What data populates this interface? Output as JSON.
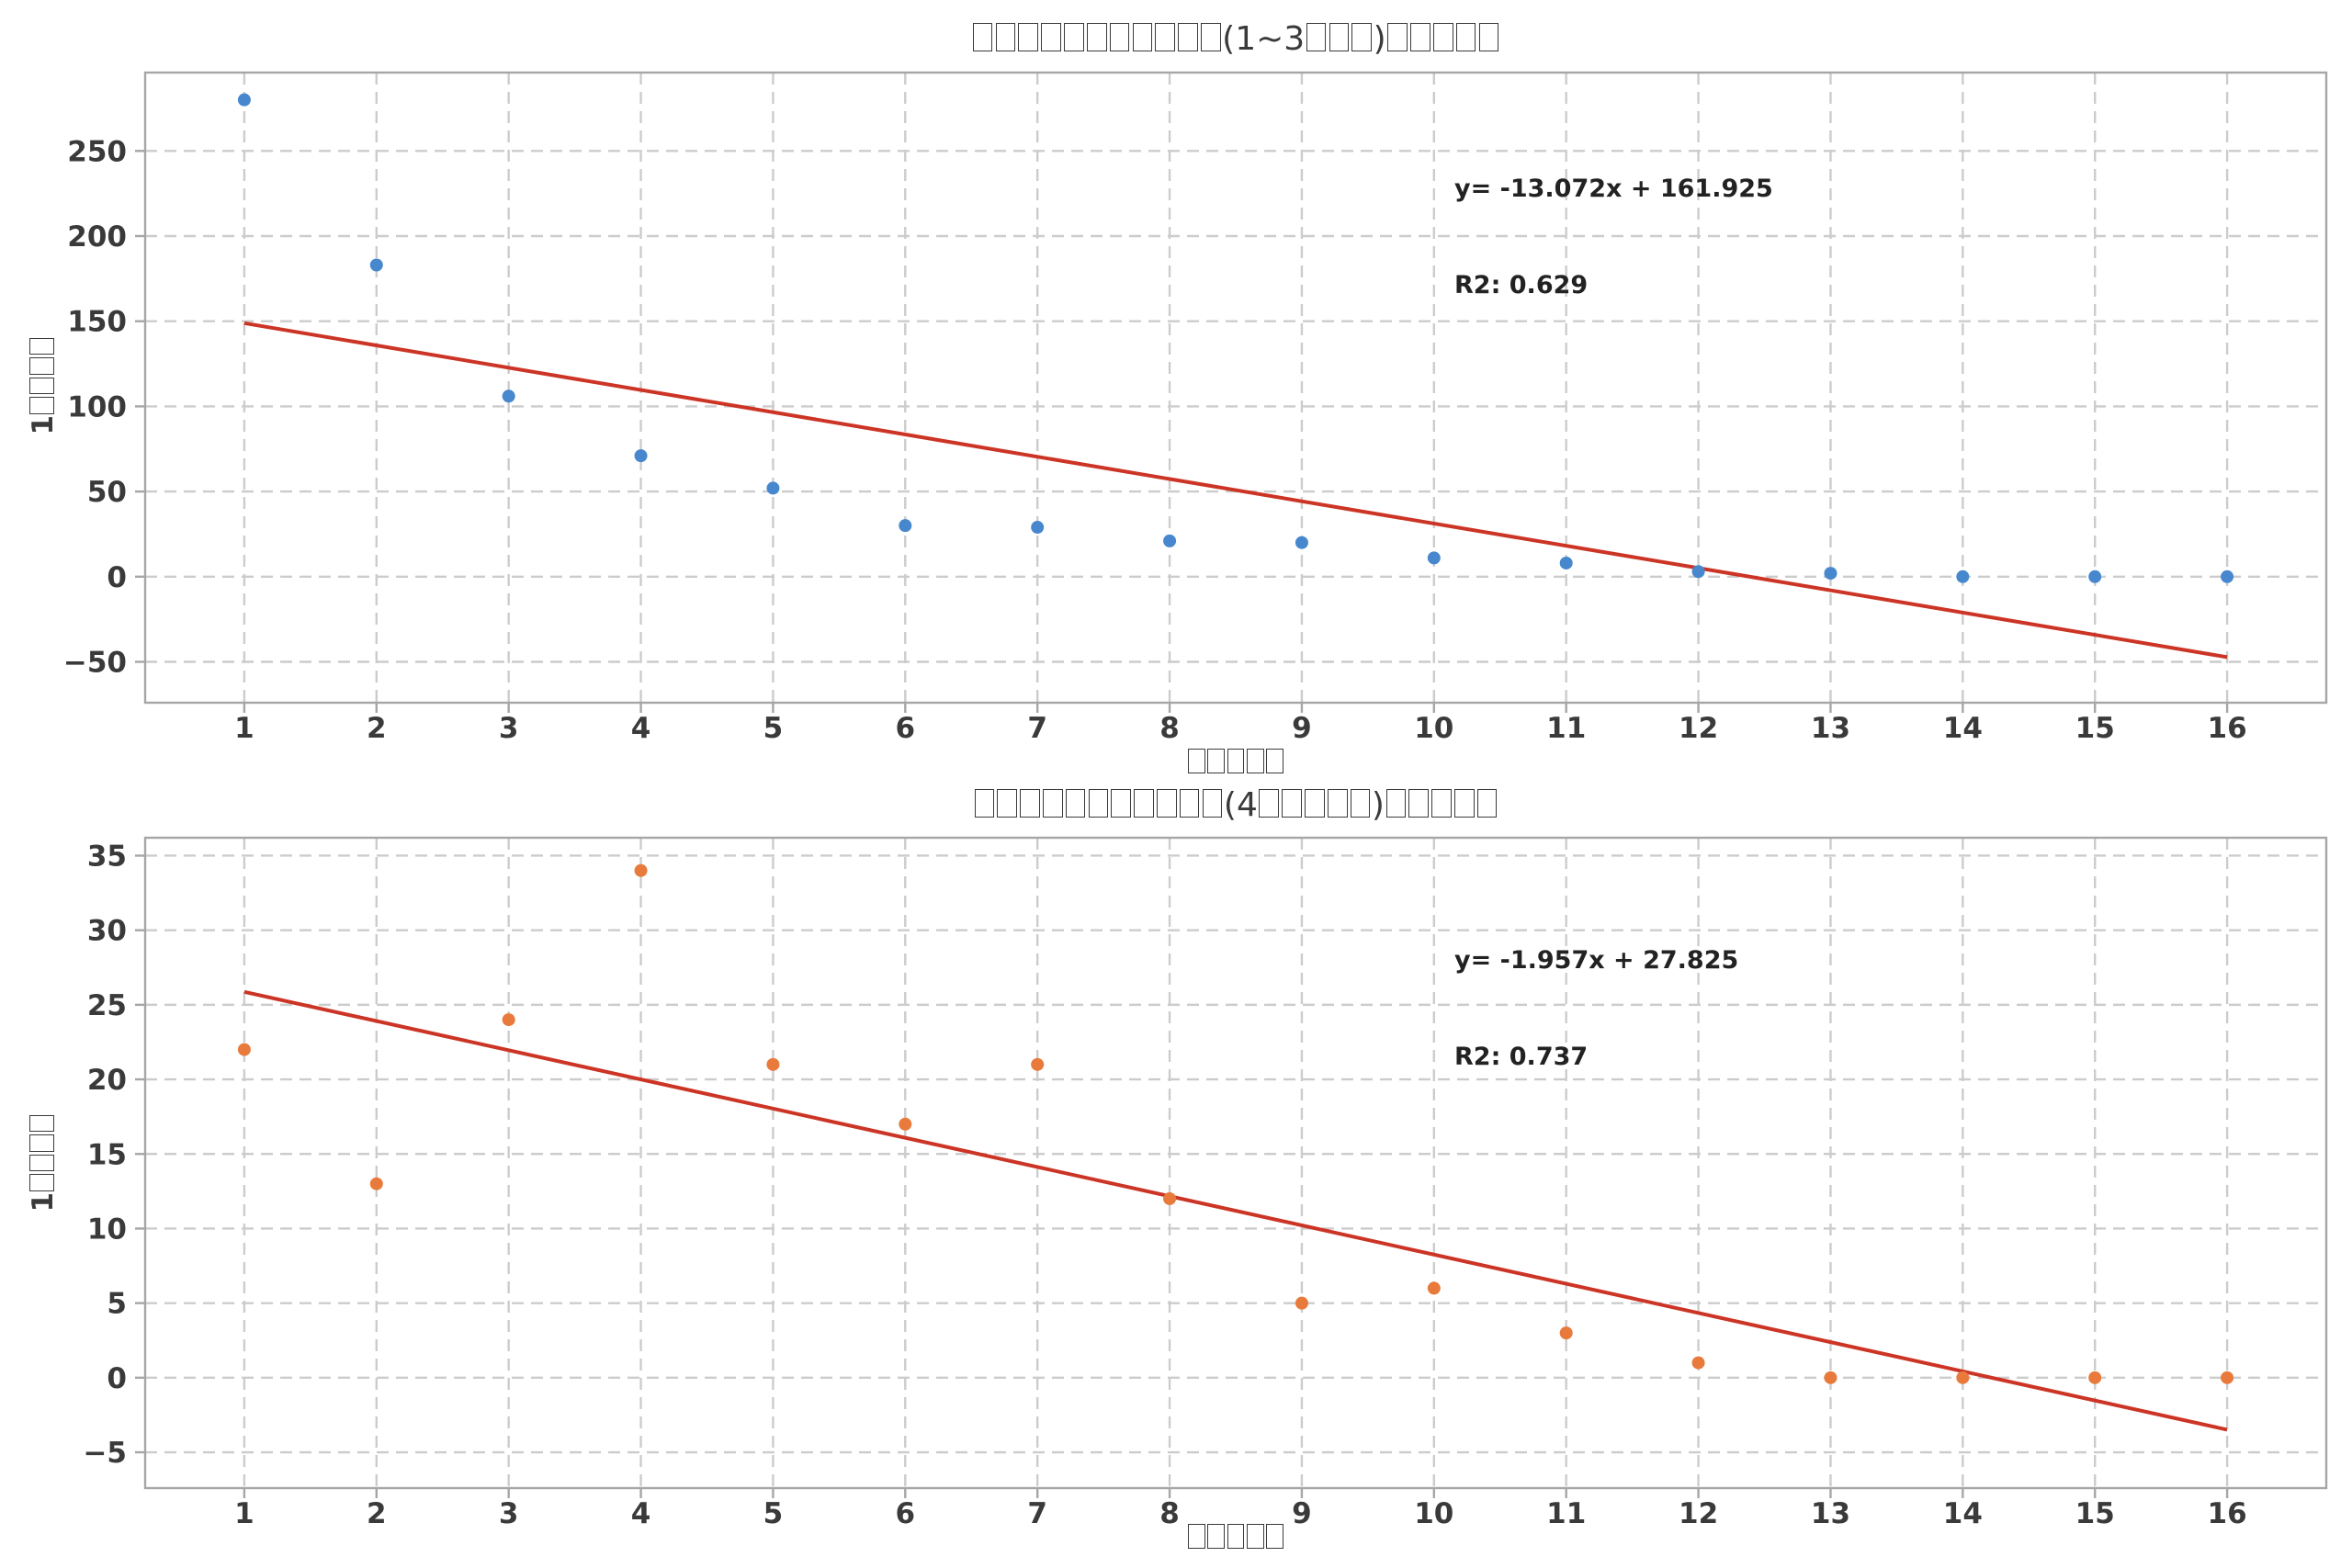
{
  "figure": {
    "background": "#ffffff",
    "grid": "dashed",
    "grid_color": "#cccccc",
    "spine_color": "#a6a6a6",
    "tick_label_color": "#3a3a3a"
  },
  "chart_data": [
    {
      "type": "scatter",
      "title": "□□□□□□□□□□□(1~3□□□)□□□□□",
      "xlabel": "□□□□□",
      "ylabel": "1□□□□",
      "x": [
        1,
        2,
        3,
        4,
        5,
        6,
        7,
        8,
        9,
        10,
        11,
        12,
        13,
        14,
        15,
        16
      ],
      "y": [
        280,
        183,
        106,
        71,
        52,
        30,
        29,
        21,
        20,
        11,
        8,
        3,
        2,
        0,
        0,
        0
      ],
      "trendline": {
        "slope": -13.072,
        "intercept": 161.925,
        "r2": 0.629,
        "x_start": 1,
        "x_end": 16
      },
      "annotation": {
        "line1": "y= -13.072x + 161.925",
        "line2": "R2: 0.629"
      },
      "xlim": [
        0.25,
        16.75
      ],
      "ylim": [
        -74,
        296
      ],
      "xticks": [
        1,
        2,
        3,
        4,
        5,
        6,
        7,
        8,
        9,
        10,
        11,
        12,
        13,
        14,
        15,
        16
      ],
      "yticks": [
        -50,
        0,
        50,
        100,
        150,
        200,
        250
      ],
      "grid": true,
      "legend": false,
      "marker_color": "#4787cd",
      "trend_color": "#cc3425"
    },
    {
      "type": "scatter",
      "title": "□□□□□□□□□□□(4□□□□□)□□□□□",
      "xlabel": "□□□□□",
      "ylabel": "1□□□□",
      "x": [
        1,
        2,
        3,
        4,
        5,
        6,
        7,
        8,
        9,
        10,
        11,
        12,
        13,
        14,
        15,
        16
      ],
      "y": [
        22,
        13,
        24,
        34,
        21,
        17,
        21,
        12,
        5,
        6,
        3,
        1,
        0,
        0,
        0,
        0
      ],
      "trendline": {
        "slope": -1.957,
        "intercept": 27.825,
        "r2": 0.737,
        "x_start": 1,
        "x_end": 16
      },
      "annotation": {
        "line1": "y= -1.957x + 27.825",
        "line2": "R2: 0.737"
      },
      "xlim": [
        0.25,
        16.75
      ],
      "ylim": [
        -7.4,
        36.2
      ],
      "xticks": [
        1,
        2,
        3,
        4,
        5,
        6,
        7,
        8,
        9,
        10,
        11,
        12,
        13,
        14,
        15,
        16
      ],
      "yticks": [
        -5,
        0,
        5,
        10,
        15,
        20,
        25,
        30,
        35
      ],
      "grid": true,
      "legend": false,
      "marker_color": "#e87a3c",
      "trend_color": "#cc3425"
    }
  ]
}
